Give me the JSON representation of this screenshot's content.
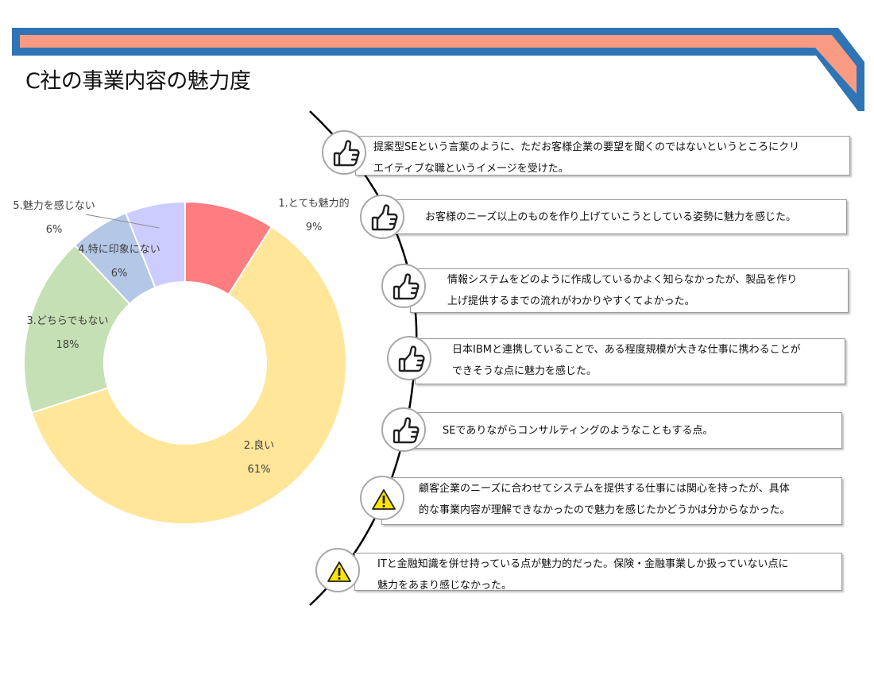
{
  "page_title": "C社の事業内容の魅力度",
  "colors": {
    "banner_outer": "#2f74b5",
    "banner_inner": "#f99b83",
    "warning_yellow": "#ffe600"
  },
  "chart_data": {
    "type": "pie",
    "variant": "donut",
    "categories": [
      "1.とても魅力的",
      "2.良い",
      "3.どちらでもない",
      "4.特に印象にない",
      "5.魅力を感じない"
    ],
    "values": [
      9,
      61,
      18,
      6,
      6
    ],
    "value_labels": [
      "9%",
      "61%",
      "18%",
      "6%",
      "6%"
    ],
    "colors": [
      "#ff7c80",
      "#ffe699",
      "#c5e0b4",
      "#b4c7e7",
      "#ccccff"
    ],
    "legend": "none"
  },
  "comments": [
    {
      "icon": "thumbs-up-icon",
      "lines": [
        "提案型SEという言葉のように、ただお客様企業の要望を聞くのではないというところにクリ",
        "エイティブな職というイメージを受けた。"
      ]
    },
    {
      "icon": "thumbs-up-icon",
      "lines": [
        "お客様のニーズ以上のものを作り上げていこうとしている姿勢に魅力を感じた。"
      ]
    },
    {
      "icon": "thumbs-up-icon",
      "lines": [
        "情報システムをどのように作成しているかよく知らなかったが、製品を作り",
        "上げ提供するまでの流れがわかりやすくてよかった。"
      ]
    },
    {
      "icon": "thumbs-up-icon",
      "lines": [
        "日本IBMと連携していることで、ある程度規模が大きな仕事に携わることが",
        "できそうな点に魅力を感じた。"
      ]
    },
    {
      "icon": "thumbs-up-icon",
      "lines": [
        "SEでありながらコンサルティングのようなこともする点。"
      ]
    },
    {
      "icon": "warning-icon",
      "lines": [
        "顧客企業のニーズに合わせてシステムを提供する仕事には関心を持ったが、具体",
        "的な事業内容が理解できなかったので魅力を感じたかどうかは分からなかった。"
      ]
    },
    {
      "icon": "warning-icon",
      "lines": [
        "ITと金融知識を併せ持っている点が魅力的だった。保険・金融事業しか扱っていない点に",
        "魅力をあまり感じなかった。"
      ]
    }
  ]
}
